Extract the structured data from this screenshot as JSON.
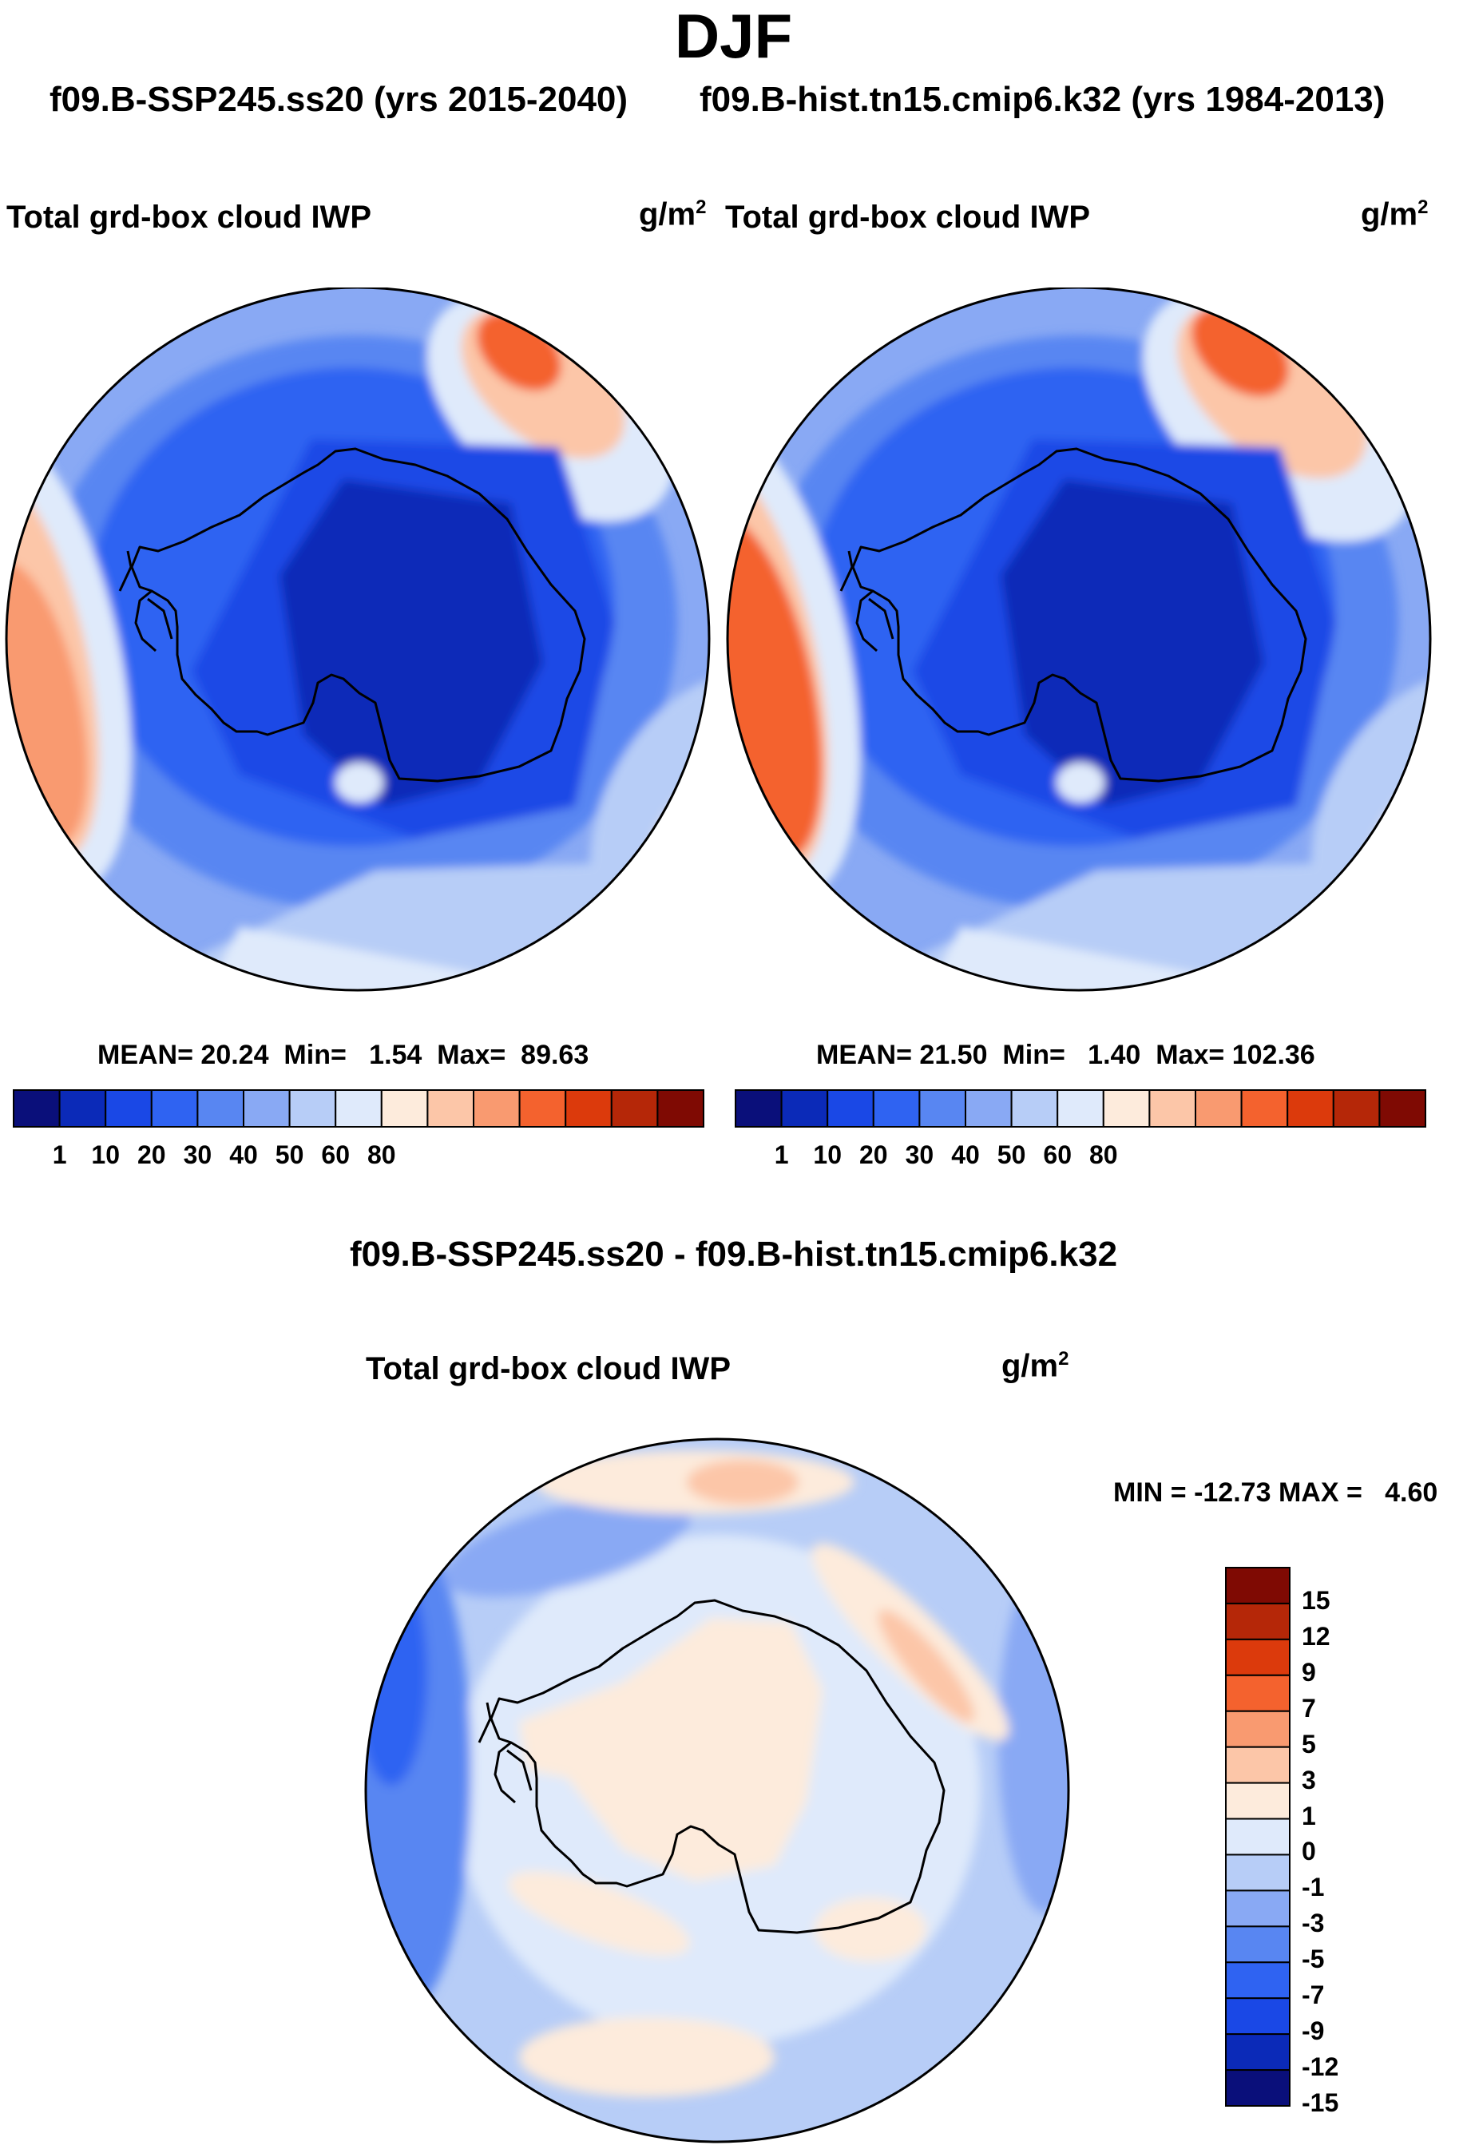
{
  "page": {
    "season": "DJF",
    "subtitle_left": "f09.B-SSP245.ss20 (yrs 2015-2040)",
    "subtitle_right": "f09.B-hist.tn15.cmip6.k32 (yrs 1984-2013)",
    "diff_title": "f09.B-SSP245.ss20 - f09.B-hist.tn15.cmip6.k32"
  },
  "panels": [
    {
      "variable": "Total grd-box cloud IWP",
      "unit_base": "g/m",
      "unit_exp": "2",
      "stats": {
        "mean_label": "MEAN=",
        "mean": "20.24",
        "min_label": "Min=",
        "min": "1.54",
        "max_label": "Max=",
        "max": "89.63"
      }
    },
    {
      "variable": "Total grd-box cloud IWP",
      "unit_base": "g/m",
      "unit_exp": "2",
      "stats": {
        "mean_label": "MEAN=",
        "mean": "21.50",
        "min_label": "Min=",
        "min": "1.40",
        "max_label": "Max=",
        "max": "102.36"
      }
    }
  ],
  "diff_panel": {
    "variable": "Total grd-box cloud IWP",
    "unit_base": "g/m",
    "unit_exp": "2",
    "stats": {
      "min_label": "MIN =",
      "min": "-12.73",
      "max_label": "MAX =",
      "max": "4.60"
    }
  },
  "colorbar_main": {
    "labels": [
      "1",
      "10",
      "20",
      "30",
      "40",
      "50",
      "60",
      "80"
    ],
    "colors": [
      "#0a0f7a",
      "#0b2ab8",
      "#1a48e6",
      "#2f63f2",
      "#5886f2",
      "#89a9f4",
      "#b7cdf7",
      "#dfeafb",
      "#fdebdc",
      "#fcc6a8",
      "#f99a70",
      "#f4622e",
      "#dc3a0c",
      "#b52708",
      "#7f0a03"
    ]
  },
  "colorbar_diff": {
    "labels": [
      "15",
      "12",
      "9",
      "7",
      "5",
      "3",
      "1",
      "0",
      "-1",
      "-3",
      "-5",
      "-7",
      "-9",
      "-12",
      "-15"
    ],
    "colors": [
      "#7f0a03",
      "#b52708",
      "#dc3a0c",
      "#f4622e",
      "#f99a70",
      "#fcc6a8",
      "#fdebdc",
      "#dfeafb",
      "#b7cdf7",
      "#89a9f4",
      "#5886f2",
      "#2f63f2",
      "#1a48e6",
      "#0b2ab8",
      "#0a0f7a"
    ]
  }
}
